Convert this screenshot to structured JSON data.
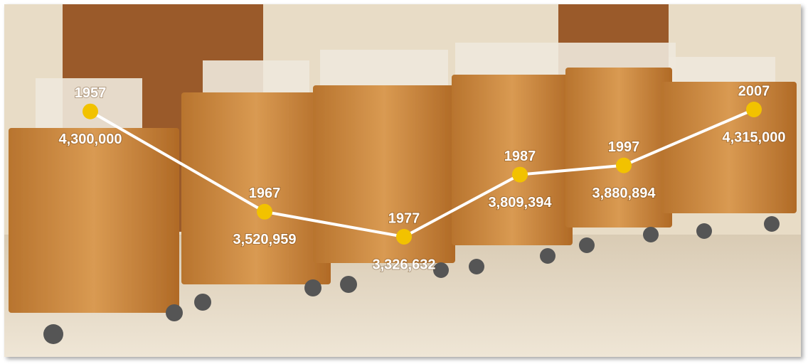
{
  "chart_data": {
    "type": "line",
    "categories": [
      "1957",
      "1967",
      "1977",
      "1987",
      "1997",
      "2007"
    ],
    "values": [
      4300000,
      3520959,
      3326632,
      3809394,
      3880894,
      4315000
    ],
    "value_labels": [
      "4,300,000",
      "3,520,959",
      "3,326,632",
      "3,809,394",
      "3,880,894",
      "4,315,000"
    ],
    "color": "#ffffff",
    "marker_color": "#f2c200"
  }
}
